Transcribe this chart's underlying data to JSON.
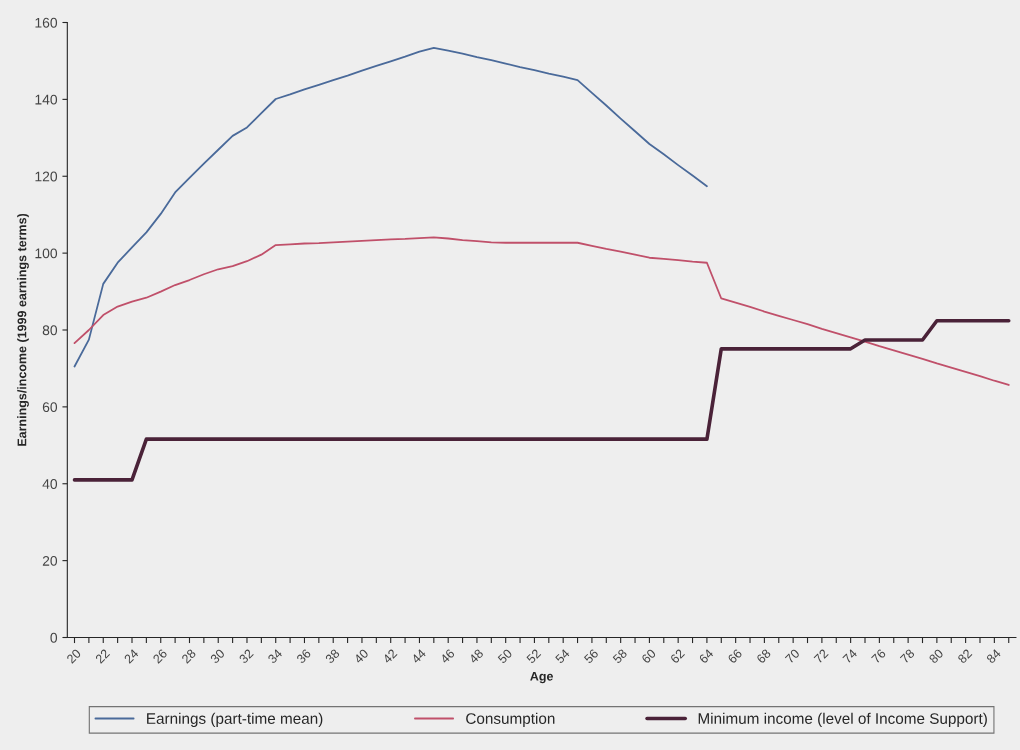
{
  "chart_data": {
    "type": "line",
    "xlabel": "Age",
    "ylabel": "Earnings/income (1999 earnings terms)",
    "categories": [
      "20",
      null,
      "22",
      null,
      "24",
      null,
      "26",
      null,
      "28",
      null,
      "30",
      null,
      "32",
      null,
      "34",
      null,
      "36",
      null,
      "38",
      null,
      "40",
      null,
      "42",
      null,
      "44",
      null,
      "46",
      null,
      "48",
      null,
      "50",
      null,
      "52",
      null,
      "54",
      null,
      "56",
      null,
      "58",
      null,
      "60",
      null,
      "62",
      null,
      "64",
      null,
      "66",
      null,
      "68",
      null,
      "70",
      null,
      "72",
      null,
      "74",
      null,
      "76",
      null,
      "78",
      null,
      "80",
      null,
      "82",
      null,
      "84",
      null
    ],
    "series": [
      {
        "name": "Earnings (part-time mean)",
        "color": "#4a6a9a",
        "values": [
          70.5,
          77.5,
          92,
          97.5,
          101.5,
          105.4,
          110.2,
          115.8,
          119.6,
          123.3,
          126.9,
          130.5,
          132.7,
          136.4,
          140.1,
          141.3,
          142.6,
          143.8,
          145.0,
          146.2,
          147.5,
          148.7,
          149.9,
          151.1,
          152.4,
          153.4,
          152.7,
          151.9,
          151.0,
          150.2,
          149.3,
          148.4,
          147.6,
          146.7,
          145.9,
          145.0,
          141.7,
          138.4,
          135.0,
          131.7,
          128.4,
          125.7,
          122.9,
          120.2,
          117.4,
          null,
          null,
          null,
          null,
          null,
          null,
          null,
          null,
          null,
          null,
          null,
          null,
          null,
          null,
          null,
          null,
          null,
          null,
          null,
          null,
          null
        ]
      },
      {
        "name": "Consumption",
        "color": "#c0506a",
        "values": [
          76.6,
          80.0,
          83.9,
          86.1,
          87.4,
          88.4,
          90.0,
          91.7,
          93.0,
          94.5,
          95.8,
          96.6,
          97.9,
          99.6,
          102.1,
          102.3,
          102.5,
          102.6,
          102.8,
          103.0,
          103.2,
          103.4,
          103.6,
          103.7,
          103.9,
          104.1,
          103.8,
          103.4,
          103.1,
          102.8,
          102.7,
          102.7,
          102.7,
          102.7,
          102.7,
          102.7,
          101.9,
          101.1,
          100.4,
          99.6,
          98.8,
          98.5,
          98.2,
          97.8,
          97.5,
          88.2,
          87.1,
          86.0,
          84.8,
          83.7,
          82.6,
          81.5,
          80.3,
          79.2,
          78.1,
          77.0,
          75.8,
          74.7,
          73.6,
          72.5,
          71.3,
          70.2,
          69.1,
          68.0,
          66.8,
          65.7
        ]
      },
      {
        "name": "Minimum income (level of Income Support)",
        "color": "#4a2238",
        "values": [
          41,
          41,
          41,
          41,
          41,
          51.6,
          51.6,
          51.6,
          51.6,
          51.6,
          51.6,
          51.6,
          51.6,
          51.6,
          51.6,
          51.6,
          51.6,
          51.6,
          51.6,
          51.6,
          51.6,
          51.6,
          51.6,
          51.6,
          51.6,
          51.6,
          51.6,
          51.6,
          51.6,
          51.6,
          51.6,
          51.6,
          51.6,
          51.6,
          51.6,
          51.6,
          51.6,
          51.6,
          51.6,
          51.6,
          51.6,
          51.6,
          51.6,
          51.6,
          51.6,
          75.1,
          75.1,
          75.1,
          75.1,
          75.1,
          75.1,
          75.1,
          75.1,
          75.1,
          75.1,
          77.4,
          77.4,
          77.4,
          77.4,
          77.4,
          82.4,
          82.4,
          82.4,
          82.4,
          82.4,
          82.4
        ]
      }
    ],
    "ylim": [
      0,
      160
    ],
    "yticks": [
      0,
      20,
      40,
      60,
      80,
      100,
      120,
      140,
      160
    ],
    "grid": false,
    "legend": "bottom",
    "marker": "none",
    "line_style": "solid"
  }
}
